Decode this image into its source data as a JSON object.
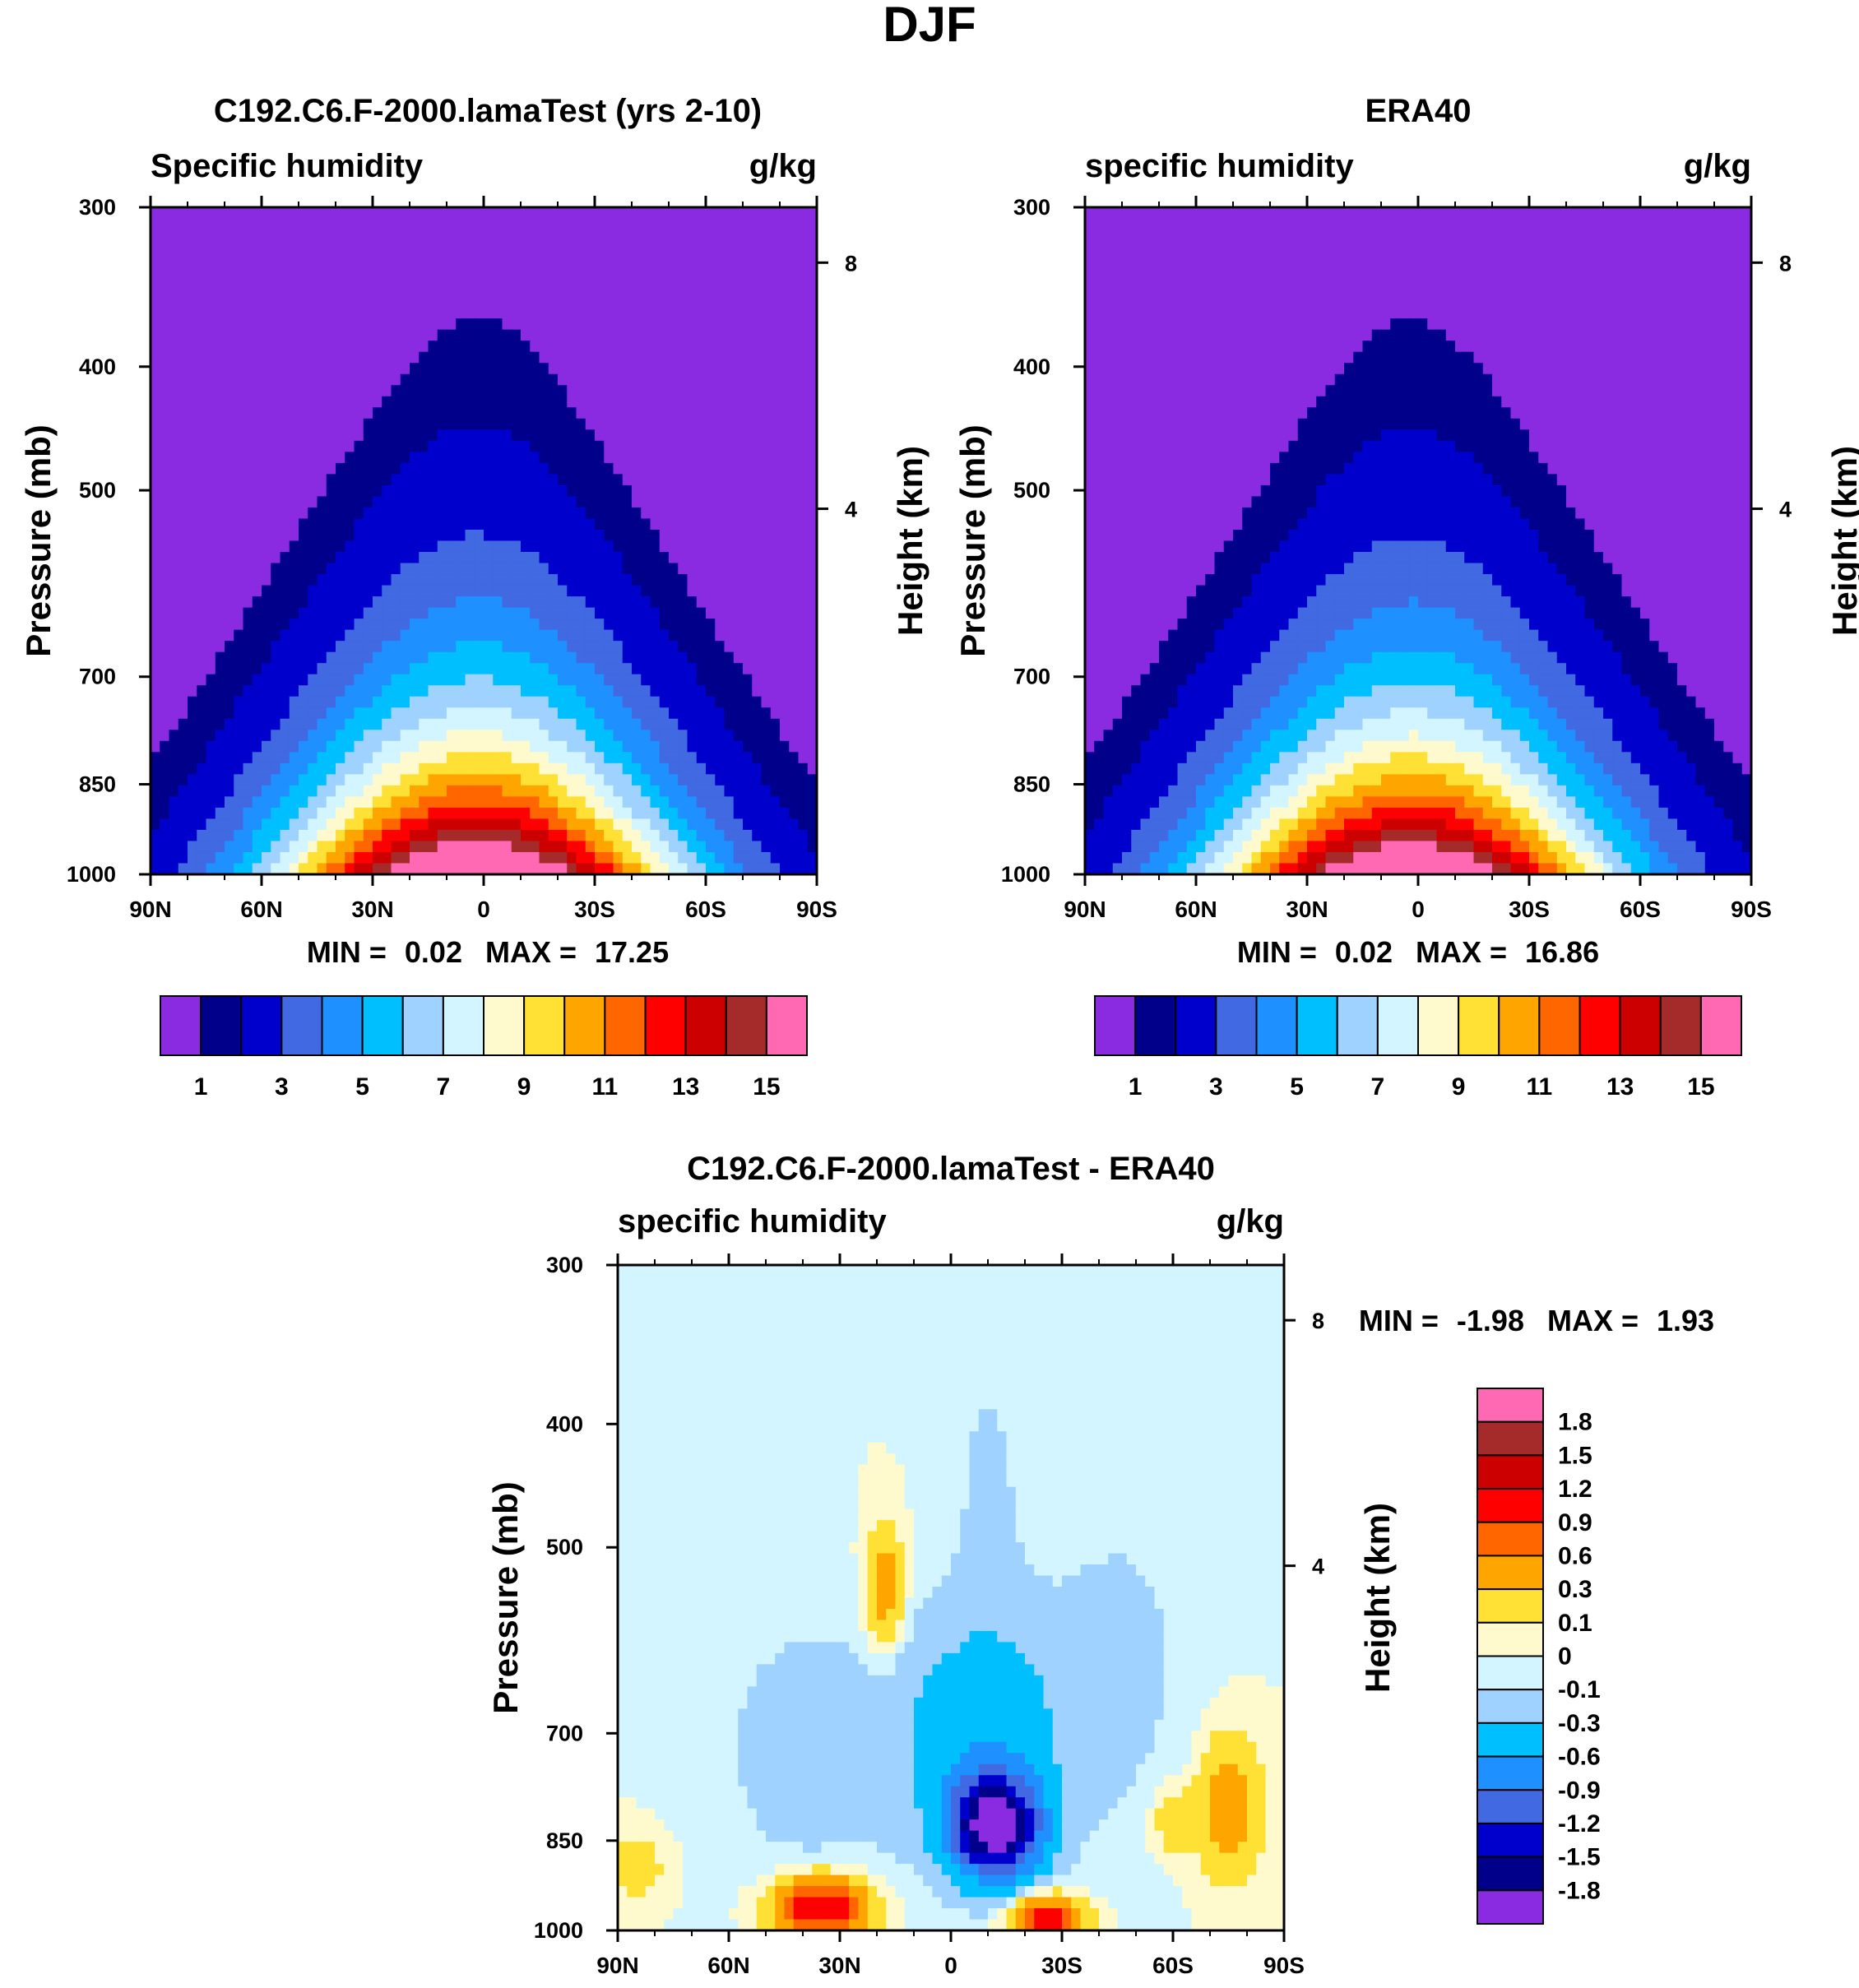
{
  "figure": {
    "title": "DJF"
  },
  "colors": {
    "abs_levels": [
      "#8a2be2",
      "#00008b",
      "#0000cd",
      "#4169e1",
      "#1e90ff",
      "#00bfff",
      "#a0d2ff",
      "#d2f5ff",
      "#fffacd",
      "#ffe135",
      "#ffa500",
      "#ff6600",
      "#ff0000",
      "#cd0000",
      "#a52a2a",
      "#ff69b4"
    ],
    "diff_levels": [
      "#8a2be2",
      "#00008b",
      "#0000cd",
      "#4169e1",
      "#1e90ff",
      "#00bfff",
      "#a0d2ff",
      "#d2f5ff",
      "#fffacd",
      "#ffe135",
      "#ffa500",
      "#ff6600",
      "#ff0000",
      "#cd0000",
      "#a52a2a",
      "#ff69b4"
    ]
  },
  "chart_data": [
    {
      "type": "contour",
      "title": "C192.C6.F-2000.lamaTest (yrs 2-10)",
      "left_label": "Specific humidity",
      "right_label": "g/kg",
      "ylabel": "Pressure (mb)",
      "y2label": "Height (km)",
      "x_ticks": [
        "90N",
        "60N",
        "30N",
        "0",
        "30S",
        "60S",
        "90S"
      ],
      "x_range": [
        90,
        -90
      ],
      "y_ticks": [
        "300",
        "400",
        "500",
        "700",
        "850",
        "1000"
      ],
      "y_range": [
        1000,
        300
      ],
      "y2_ticks": [
        "8",
        "4"
      ],
      "min_label": "MIN =",
      "min": "0.02",
      "max_label": "MAX =",
      "max": "17.25",
      "colorbar_labels": [
        "1",
        "3",
        "5",
        "7",
        "9",
        "11",
        "13",
        "15"
      ],
      "contour_levels": [
        0.5,
        1,
        2,
        3,
        4,
        5,
        6,
        7,
        8,
        9,
        10,
        11,
        12,
        13,
        14,
        15
      ],
      "peak_latitude": 0,
      "surface_peak_value": 17.25
    },
    {
      "type": "contour",
      "title": "ERA40",
      "left_label": "specific humidity",
      "right_label": "g/kg",
      "ylabel": "Pressure (mb)",
      "y2label": "Height (km)",
      "x_ticks": [
        "90N",
        "60N",
        "30N",
        "0",
        "30S",
        "60S",
        "90S"
      ],
      "x_range": [
        90,
        -90
      ],
      "y_ticks": [
        "300",
        "400",
        "500",
        "700",
        "850",
        "1000"
      ],
      "y_range": [
        1000,
        300
      ],
      "y2_ticks": [
        "8",
        "4"
      ],
      "min_label": "MIN =",
      "min": "0.02",
      "max_label": "MAX =",
      "max": "16.86",
      "colorbar_labels": [
        "1",
        "3",
        "5",
        "7",
        "9",
        "11",
        "13",
        "15"
      ],
      "contour_levels": [
        0.5,
        1,
        2,
        3,
        4,
        5,
        6,
        7,
        8,
        9,
        10,
        11,
        12,
        13,
        14,
        15
      ],
      "peak_latitude": 0,
      "surface_peak_value": 16.86
    },
    {
      "type": "contour",
      "title": "C192.C6.F-2000.lamaTest - ERA40",
      "left_label": "specific humidity",
      "right_label": "g/kg",
      "ylabel": "Pressure (mb)",
      "y2label": "Height (km)",
      "x_ticks": [
        "90N",
        "60N",
        "30N",
        "0",
        "30S",
        "60S",
        "90S"
      ],
      "x_range": [
        90,
        -90
      ],
      "y_ticks": [
        "300",
        "400",
        "500",
        "700",
        "850",
        "1000"
      ],
      "y_range": [
        1000,
        300
      ],
      "y2_ticks": [
        "8",
        "4"
      ],
      "min_label": "MIN =",
      "min": "-1.98",
      "max_label": "MAX =",
      "max": "1.93",
      "colorbar_labels": [
        "1.8",
        "1.5",
        "1.2",
        "0.9",
        "0.6",
        "0.3",
        "0.1",
        "0",
        "-0.1",
        "-0.3",
        "-0.6",
        "-0.9",
        "-1.2",
        "-1.5",
        "-1.8"
      ],
      "contour_levels": [
        -1.8,
        -1.5,
        -1.2,
        -0.9,
        -0.6,
        -0.3,
        -0.1,
        0,
        0.1,
        0.3,
        0.6,
        0.9,
        1.2,
        1.5,
        1.8
      ]
    }
  ]
}
